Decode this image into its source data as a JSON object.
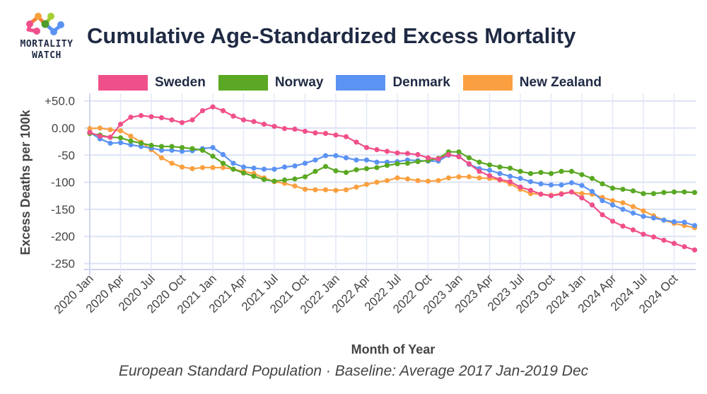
{
  "header": {
    "logo": {
      "icon": "mortality-watch-network-logo",
      "line1": "MORTALITY",
      "line2": "WATCH"
    },
    "title": "Cumulative Age-Standardized Excess Mortality"
  },
  "footer": {
    "subtitle": "European Standard Population · Baseline: Average 2017 Jan-2019 Dec"
  },
  "chart_data": {
    "type": "line",
    "title": "Cumulative Age-Standardized Excess Mortality",
    "subtitle": "European Standard Population · Baseline: Average 2017 Jan-2019 Dec",
    "xlabel": "Month of Year",
    "ylabel": "Excess Deaths per 100k",
    "ylim": [
      -260,
      55
    ],
    "yticks": [
      50,
      0,
      -50,
      -100,
      -150,
      -200,
      -250
    ],
    "ytick_labels": [
      "+50.0",
      "0.00",
      "-50",
      "-100",
      "-150",
      "-200",
      "-250"
    ],
    "grid": true,
    "legend_position": "top",
    "x_start": "2020 Jan",
    "x_end": "2024 Dec",
    "months_count": 60,
    "xtick_labels": [
      "2020 Jan",
      "2020 Apr",
      "2020 Jul",
      "2020 Oct",
      "2021 Jan",
      "2021 Apr",
      "2021 Jul",
      "2021 Oct",
      "2022 Jan",
      "2022 Apr",
      "2022 Jul",
      "2022 Oct",
      "2023 Jan",
      "2023 Apr",
      "2023 Jul",
      "2023 Oct",
      "2024 Jan",
      "2024 Apr",
      "2024 Jul",
      "2024 Oct"
    ],
    "xtick_step_months": 3,
    "series": [
      {
        "name": "Sweden",
        "color": "#f0508a",
        "values": [
          -8,
          -15,
          -17,
          7,
          20,
          23,
          21,
          19,
          15,
          10,
          15,
          32,
          39,
          32,
          22,
          15,
          12,
          7,
          3,
          -1,
          -2,
          -6,
          -9,
          -10,
          -13,
          -16,
          -26,
          -36,
          -40,
          -43,
          -46,
          -47,
          -49,
          -55,
          -57,
          -49,
          -53,
          -66,
          -80,
          -88,
          -95,
          -99,
          -109,
          -115,
          -122,
          -125,
          -122,
          -118,
          -129,
          -142,
          -160,
          -172,
          -181,
          -188,
          -196,
          -201,
          -207,
          -213,
          -219,
          -225
        ]
      },
      {
        "name": "Norway",
        "color": "#5aa823",
        "values": [
          -10,
          -13,
          -17,
          -18,
          -24,
          -28,
          -32,
          -34,
          -34,
          -36,
          -38,
          -41,
          -52,
          -65,
          -76,
          -83,
          -89,
          -95,
          -98,
          -96,
          -94,
          -90,
          -80,
          -71,
          -79,
          -82,
          -77,
          -75,
          -73,
          -69,
          -66,
          -65,
          -62,
          -60,
          -56,
          -44,
          -44,
          -55,
          -63,
          -68,
          -72,
          -74,
          -80,
          -84,
          -82,
          -84,
          -80,
          -80,
          -86,
          -93,
          -103,
          -111,
          -113,
          -116,
          -121,
          -121,
          -119,
          -118,
          -118,
          -119
        ]
      },
      {
        "name": "Denmark",
        "color": "#5b93f3",
        "values": [
          -8,
          -20,
          -28,
          -27,
          -31,
          -34,
          -37,
          -41,
          -41,
          -43,
          -42,
          -38,
          -36,
          -49,
          -65,
          -72,
          -74,
          -76,
          -76,
          -72,
          -70,
          -65,
          -59,
          -51,
          -51,
          -55,
          -59,
          -59,
          -63,
          -63,
          -62,
          -59,
          -60,
          -61,
          -61,
          -50,
          -52,
          -67,
          -75,
          -78,
          -84,
          -89,
          -93,
          -99,
          -103,
          -105,
          -105,
          -101,
          -106,
          -117,
          -134,
          -142,
          -150,
          -157,
          -163,
          -166,
          -170,
          -173,
          -174,
          -180
        ]
      },
      {
        "name": "New Zealand",
        "color": "#fba040",
        "values": [
          -1,
          0,
          -3,
          -5,
          -15,
          -26,
          -40,
          -55,
          -65,
          -72,
          -75,
          -73,
          -73,
          -73,
          -76,
          -80,
          -84,
          -92,
          -99,
          -102,
          -107,
          -113,
          -114,
          -114,
          -115,
          -114,
          -109,
          -104,
          -100,
          -97,
          -92,
          -94,
          -97,
          -98,
          -97,
          -92,
          -90,
          -90,
          -92,
          -93,
          -96,
          -103,
          -113,
          -121,
          -122,
          -124,
          -121,
          -118,
          -121,
          -122,
          -128,
          -134,
          -138,
          -145,
          -153,
          -162,
          -170,
          -176,
          -180,
          -184
        ]
      }
    ]
  }
}
